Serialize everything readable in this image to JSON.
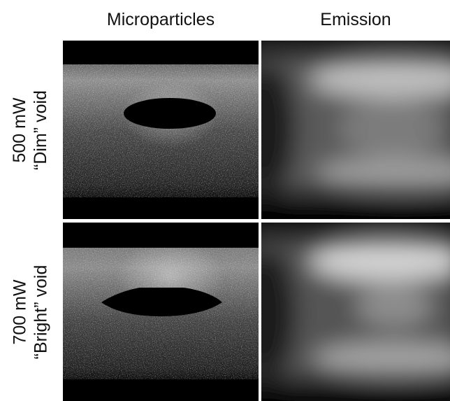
{
  "columns": {
    "microparticles": "Microparticles",
    "emission": "Emission"
  },
  "rows": [
    {
      "power": "500 mW",
      "void": "“Dim” void"
    },
    {
      "power": "700 mW",
      "void": "“Bright” void"
    }
  ],
  "colors": {
    "background": "#ffffff",
    "panel_background": "#000000",
    "particle": "#ffffff"
  }
}
